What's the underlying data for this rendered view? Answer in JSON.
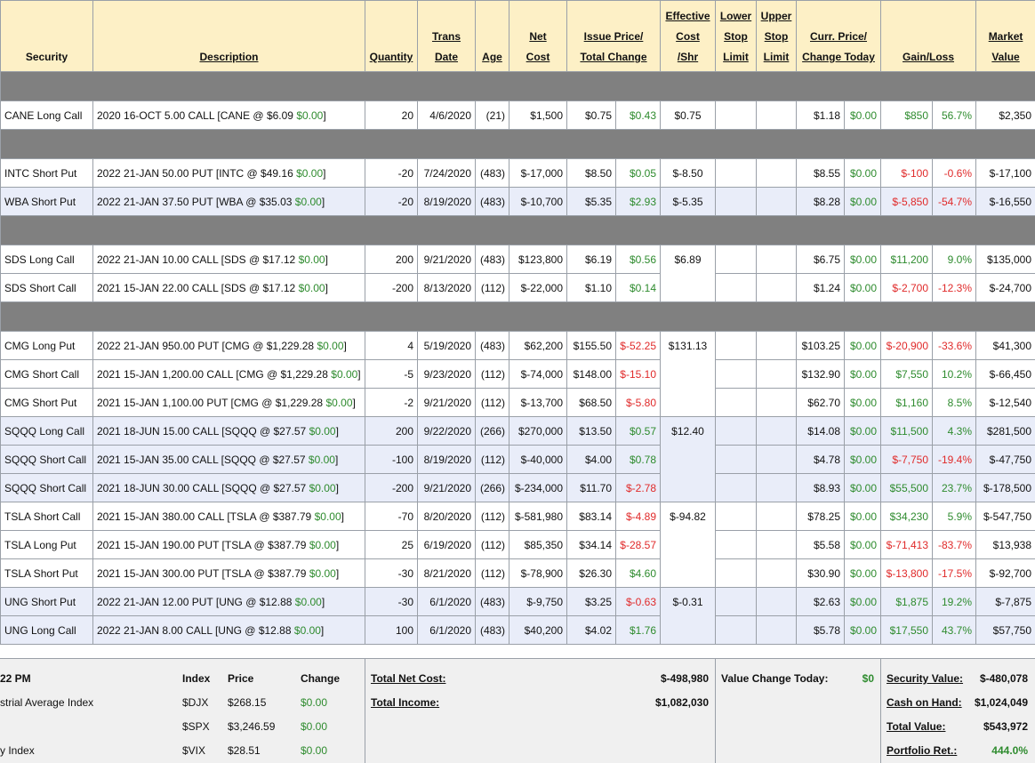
{
  "header": [
    {
      "lines": [
        "Security"
      ],
      "span": 1,
      "underline": false
    },
    {
      "lines": [
        "Description"
      ],
      "span": 1,
      "underline": true
    },
    {
      "lines": [
        "Quantity"
      ],
      "span": 1,
      "underline": true
    },
    {
      "lines": [
        "Trans",
        "Date"
      ],
      "span": 1,
      "underline": true
    },
    {
      "lines": [
        "Age"
      ],
      "span": 1,
      "underline": true
    },
    {
      "lines": [
        "Net",
        "Cost"
      ],
      "span": 1,
      "underline": true
    },
    {
      "lines": [
        "Issue Price/",
        "Total Change"
      ],
      "span": 2,
      "underline": true
    },
    {
      "lines": [
        "Effective",
        "Cost",
        "/Shr"
      ],
      "span": 1,
      "underline": true
    },
    {
      "lines": [
        "Lower",
        "Stop",
        "Limit"
      ],
      "span": 1,
      "underline": true
    },
    {
      "lines": [
        "Upper",
        "Stop",
        "Limit"
      ],
      "span": 1,
      "underline": true
    },
    {
      "lines": [
        "Curr. Price/",
        "Change Today"
      ],
      "span": 2,
      "underline": true
    },
    {
      "lines": [
        "Gain/Loss"
      ],
      "span": 2,
      "underline": true
    },
    {
      "lines": [
        "Market",
        "Value"
      ],
      "span": 1,
      "underline": true
    }
  ],
  "sections": [
    {
      "blocks": [
        {
          "highlight": false,
          "effective_cost": "$0.75",
          "rows": [
            {
              "security": "CANE Long Call",
              "description": {
                "text": "2020 16-OCT 5.00 CALL [CANE @ $6.09",
                "change": "$0.00",
                "close": "]"
              },
              "quantity": 20,
              "date": "4/6/2020",
              "age": "(21)",
              "net_cost": "$1,500",
              "issue_price": "$0.75",
              "total_change": "$0.43",
              "curr_price": "$1.18",
              "change_today": "$0.00",
              "gain": "$850",
              "gain_pct": "56.7%",
              "market_value": "$2,350"
            }
          ]
        }
      ]
    },
    {
      "blocks": [
        {
          "highlight": false,
          "effective_cost": "$-8.50",
          "rows": [
            {
              "security": "INTC Short Put",
              "description": {
                "text": "2022 21-JAN 50.00 PUT [INTC @ $49.16",
                "change": "$0.00",
                "close": "]"
              },
              "quantity": -20,
              "date": "7/24/2020",
              "age": "(483)",
              "net_cost": "$-17,000",
              "issue_price": "$8.50",
              "total_change": "$0.05",
              "curr_price": "$8.55",
              "change_today": "$0.00",
              "gain": "$-100",
              "gain_pct": "-0.6%",
              "market_value": "$-17,100"
            }
          ]
        },
        {
          "highlight": true,
          "effective_cost": "$-5.35",
          "rows": [
            {
              "security": "WBA Short Put",
              "description": {
                "text": "2022 21-JAN 37.50 PUT [WBA @ $35.03",
                "change": "$0.00",
                "close": "]"
              },
              "quantity": -20,
              "date": "8/19/2020",
              "age": "(483)",
              "net_cost": "$-10,700",
              "issue_price": "$5.35",
              "total_change": "$2.93",
              "curr_price": "$8.28",
              "change_today": "$0.00",
              "gain": "$-5,850",
              "gain_pct": "-54.7%",
              "market_value": "$-16,550"
            }
          ]
        }
      ]
    },
    {
      "blocks": [
        {
          "highlight": false,
          "effective_cost": "$6.89",
          "rows": [
            {
              "security": "SDS Long Call",
              "description": {
                "text": "2022 21-JAN 10.00 CALL [SDS @ $17.12",
                "change": "$0.00",
                "close": "]"
              },
              "quantity": 200,
              "date": "9/21/2020",
              "age": "(483)",
              "net_cost": "$123,800",
              "issue_price": "$6.19",
              "total_change": "$0.56",
              "curr_price": "$6.75",
              "change_today": "$0.00",
              "gain": "$11,200",
              "gain_pct": "9.0%",
              "market_value": "$135,000"
            },
            {
              "security": "SDS Short Call",
              "description": {
                "text": "2021 15-JAN 22.00 CALL [SDS @ $17.12",
                "change": "$0.00",
                "close": "]"
              },
              "quantity": -200,
              "date": "8/13/2020",
              "age": "(112)",
              "net_cost": "$-22,000",
              "issue_price": "$1.10",
              "total_change": "$0.14",
              "curr_price": "$1.24",
              "change_today": "$0.00",
              "gain": "$-2,700",
              "gain_pct": "-12.3%",
              "market_value": "$-24,700"
            }
          ]
        }
      ]
    },
    {
      "blocks": [
        {
          "highlight": false,
          "effective_cost": "$131.13",
          "rows": [
            {
              "security": "CMG Long Put",
              "description": {
                "text": "2022 21-JAN 950.00 PUT [CMG @ $1,229.28",
                "change": "$0.00",
                "close": "]"
              },
              "quantity": 4,
              "date": "5/19/2020",
              "age": "(483)",
              "net_cost": "$62,200",
              "issue_price": "$155.50",
              "total_change": "$-52.25",
              "curr_price": "$103.25",
              "change_today": "$0.00",
              "gain": "$-20,900",
              "gain_pct": "-33.6%",
              "market_value": "$41,300"
            },
            {
              "security": "CMG Short Call",
              "description": {
                "text": "2021 15-JAN 1,200.00 CALL [CMG @ $1,229.28",
                "change": "$0.00",
                "close": "]"
              },
              "quantity": -5,
              "date": "9/23/2020",
              "age": "(112)",
              "net_cost": "$-74,000",
              "issue_price": "$148.00",
              "total_change": "$-15.10",
              "curr_price": "$132.90",
              "change_today": "$0.00",
              "gain": "$7,550",
              "gain_pct": "10.2%",
              "market_value": "$-66,450"
            },
            {
              "security": "CMG Short Put",
              "description": {
                "text": "2021 15-JAN 1,100.00 PUT [CMG @ $1,229.28",
                "change": "$0.00",
                "close": "]"
              },
              "quantity": -2,
              "date": "9/21/2020",
              "age": "(112)",
              "net_cost": "$-13,700",
              "issue_price": "$68.50",
              "total_change": "$-5.80",
              "curr_price": "$62.70",
              "change_today": "$0.00",
              "gain": "$1,160",
              "gain_pct": "8.5%",
              "market_value": "$-12,540"
            }
          ]
        },
        {
          "highlight": true,
          "effective_cost": "$12.40",
          "rows": [
            {
              "security": "SQQQ Long Call",
              "description": {
                "text": "2021 18-JUN 15.00 CALL [SQQQ @ $27.57",
                "change": "$0.00",
                "close": "]"
              },
              "quantity": 200,
              "date": "9/22/2020",
              "age": "(266)",
              "net_cost": "$270,000",
              "issue_price": "$13.50",
              "total_change": "$0.57",
              "curr_price": "$14.08",
              "change_today": "$0.00",
              "gain": "$11,500",
              "gain_pct": "4.3%",
              "market_value": "$281,500"
            },
            {
              "security": "SQQQ Short Call",
              "description": {
                "text": "2021 15-JAN 35.00 CALL [SQQQ @ $27.57",
                "change": "$0.00",
                "close": "]"
              },
              "quantity": -100,
              "date": "8/19/2020",
              "age": "(112)",
              "net_cost": "$-40,000",
              "issue_price": "$4.00",
              "total_change": "$0.78",
              "curr_price": "$4.78",
              "change_today": "$0.00",
              "gain": "$-7,750",
              "gain_pct": "-19.4%",
              "market_value": "$-47,750"
            },
            {
              "security": "SQQQ Short Call",
              "description": {
                "text": "2021 18-JUN 30.00 CALL [SQQQ @ $27.57",
                "change": "$0.00",
                "close": "]"
              },
              "quantity": -200,
              "date": "9/21/2020",
              "age": "(266)",
              "net_cost": "$-234,000",
              "issue_price": "$11.70",
              "total_change": "$-2.78",
              "curr_price": "$8.93",
              "change_today": "$0.00",
              "gain": "$55,500",
              "gain_pct": "23.7%",
              "market_value": "$-178,500"
            }
          ]
        },
        {
          "highlight": false,
          "effective_cost": "$-94.82",
          "rows": [
            {
              "security": "TSLA Short Call",
              "description": {
                "text": "2021 15-JAN 380.00 CALL [TSLA @ $387.79",
                "change": "$0.00",
                "close": "]"
              },
              "quantity": -70,
              "date": "8/20/2020",
              "age": "(112)",
              "net_cost": "$-581,980",
              "issue_price": "$83.14",
              "total_change": "$-4.89",
              "curr_price": "$78.25",
              "change_today": "$0.00",
              "gain": "$34,230",
              "gain_pct": "5.9%",
              "market_value": "$-547,750"
            },
            {
              "security": "TSLA Long Put",
              "description": {
                "text": "2021 15-JAN 190.00 PUT [TSLA @ $387.79",
                "change": "$0.00",
                "close": "]"
              },
              "quantity": 25,
              "date": "6/19/2020",
              "age": "(112)",
              "net_cost": "$85,350",
              "issue_price": "$34.14",
              "total_change": "$-28.57",
              "curr_price": "$5.58",
              "change_today": "$0.00",
              "gain": "$-71,413",
              "gain_pct": "-83.7%",
              "market_value": "$13,938"
            },
            {
              "security": "TSLA Short Put",
              "description": {
                "text": "2021 15-JAN 300.00 PUT [TSLA @ $387.79",
                "change": "$0.00",
                "close": "]"
              },
              "quantity": -30,
              "date": "8/21/2020",
              "age": "(112)",
              "net_cost": "$-78,900",
              "issue_price": "$26.30",
              "total_change": "$4.60",
              "curr_price": "$30.90",
              "change_today": "$0.00",
              "gain": "$-13,800",
              "gain_pct": "-17.5%",
              "market_value": "$-92,700"
            }
          ]
        },
        {
          "highlight": true,
          "effective_cost": "$-0.31",
          "rows": [
            {
              "security": "UNG Short Put",
              "description": {
                "text": "2022 21-JAN 12.00 PUT [UNG @ $12.88",
                "change": "$0.00",
                "close": "]"
              },
              "quantity": -30,
              "date": "6/1/2020",
              "age": "(483)",
              "net_cost": "$-9,750",
              "issue_price": "$3.25",
              "total_change": "$-0.63",
              "curr_price": "$2.63",
              "change_today": "$0.00",
              "gain": "$1,875",
              "gain_pct": "19.2%",
              "market_value": "$-7,875"
            },
            {
              "security": "UNG Long Call",
              "description": {
                "text": "2022 21-JAN 8.00 CALL [UNG @ $12.88",
                "change": "$0.00",
                "close": "]"
              },
              "quantity": 100,
              "date": "6/1/2020",
              "age": "(483)",
              "net_cost": "$40,200",
              "issue_price": "$4.02",
              "total_change": "$1.76",
              "curr_price": "$5.78",
              "change_today": "$0.00",
              "gain": "$17,550",
              "gain_pct": "43.7%",
              "market_value": "$57,750"
            }
          ]
        }
      ]
    }
  ],
  "footer": {
    "time": "22 PM",
    "index_header": {
      "index": "Index",
      "price": "Price",
      "change": "Change"
    },
    "indices": [
      {
        "name": "strial Average Index",
        "symbol": "$DJX",
        "price": "$268.15",
        "change": "$0.00"
      },
      {
        "name": null,
        "symbol": "$SPX",
        "price": "$3,246.59",
        "change": "$0.00"
      },
      {
        "name": "y Index",
        "symbol": "$VIX",
        "price": "$28.51",
        "change": "$0.00"
      }
    ],
    "totals": [
      {
        "label": "Total Net Cost:",
        "value": "$-498,980"
      },
      {
        "label": "Total Income:",
        "value": "$1,082,030"
      }
    ],
    "value_change": {
      "label": "Value Change Today:",
      "value": "$0"
    },
    "summary": [
      {
        "label": "Security Value:",
        "value": "$-480,078"
      },
      {
        "label": "Cash on Hand:",
        "value": "$1,024,049"
      },
      {
        "label": "Total Value:",
        "value": "$543,972"
      },
      {
        "label": "Portfolio Ret.:",
        "value": "444.0%"
      }
    ]
  }
}
